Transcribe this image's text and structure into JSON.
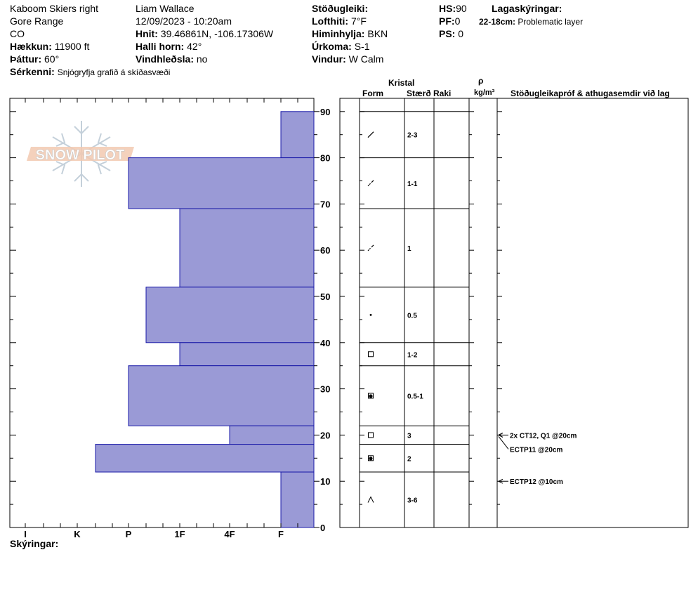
{
  "header": {
    "col1": {
      "location": "Kaboom Skiers right",
      "range": "Gore Range",
      "state": "CO",
      "elevation_label": "Hækkun:",
      "elevation_value": "11900 ft",
      "aspect_label": "Þáttur:",
      "aspect_value": "60°",
      "features_label": "Sérkenni:",
      "features_value": "Snjógryfja grafið á skíðasvæði"
    },
    "col2": {
      "observer": "Liam Wallace",
      "datetime": "12/09/2023 - 10:20am",
      "coords_label": "Hnit:",
      "coords_value": "39.46861N, -106.17306W",
      "slope_label": "Halli horn:",
      "slope_value": "42°",
      "wind_loading_label": "Vindhleðsla:",
      "wind_loading_value": "no"
    },
    "col3": {
      "stability_label": "Stöðugleiki:",
      "air_temp_label": "Lofthiti:",
      "air_temp_value": "7°F",
      "sky_label": "Himinhylja:",
      "sky_value": "BKN",
      "precip_label": "Úrkoma:",
      "precip_value": "S-1",
      "wind_label": "Vindur:",
      "wind_value": "W Calm"
    },
    "col4": {
      "hs_label": "HS:",
      "hs_value": "90",
      "pf_label": "PF:",
      "pf_value": "0",
      "ps_label": "PS:",
      "ps_value": "0"
    },
    "col5": {
      "legend_label": "Lagaskýringar:",
      "legend_range": "22-18cm:",
      "legend_text": "Problematic layer"
    }
  },
  "logo": {
    "text": "SNOW PILOT"
  },
  "table_headers": {
    "crystal": "Kristal",
    "form": "Form",
    "size": "Stærð",
    "moisture": "Raki",
    "rho": "ρ",
    "density_unit": "kg/m³",
    "stability_comments": "Stöðugleikapróf & athugasemdir við lag"
  },
  "footer": {
    "notes_label": "Skýringar:"
  },
  "colors": {
    "bar_fill": "#9a9ad6",
    "bar_edge": "#1a1aa8",
    "grid": "#000000"
  },
  "chart_data": {
    "type": "bar",
    "orientation": "horizontal",
    "y_axis": {
      "label": "",
      "min": 0,
      "max": 90,
      "ticks": [
        0,
        10,
        20,
        30,
        40,
        50,
        60,
        70,
        80,
        90
      ]
    },
    "x_axis": {
      "label": "",
      "tick_labels": [
        "I",
        "K",
        "P",
        "1F",
        "4F",
        "F"
      ]
    },
    "layers": [
      {
        "top": 90,
        "bottom": 80,
        "hardness": "F",
        "form": "decomposing",
        "size": "2-3"
      },
      {
        "top": 80,
        "bottom": 69,
        "hardness": "P",
        "form": "decomposing-broken",
        "size": "1-1"
      },
      {
        "top": 69,
        "bottom": 52,
        "hardness": "1F",
        "form": "decomposing-broken",
        "size": "1"
      },
      {
        "top": 52,
        "bottom": 40,
        "hardness": "1F-to-P",
        "form": "rounded",
        "size": "0.5"
      },
      {
        "top": 40,
        "bottom": 35,
        "hardness": "1F",
        "form": "faceted",
        "size": "1-2"
      },
      {
        "top": 35,
        "bottom": 22,
        "hardness": "P",
        "form": "mixed",
        "size": "0.5-1"
      },
      {
        "top": 22,
        "bottom": 18,
        "hardness": "4F",
        "form": "faceted",
        "size": "3"
      },
      {
        "top": 18,
        "bottom": 12,
        "hardness": "K-to-P",
        "form": "mixed",
        "size": "2"
      },
      {
        "top": 12,
        "bottom": 0,
        "hardness": "F",
        "form": "depth-hoar",
        "size": "3-6"
      }
    ],
    "stability_tests": [
      {
        "depth": 20,
        "text": "2x CT12, Q1 @20cm"
      },
      {
        "depth": 20,
        "text": "ECTP11 @20cm"
      },
      {
        "depth": 10,
        "text": "ECTP12 @10cm"
      }
    ]
  }
}
